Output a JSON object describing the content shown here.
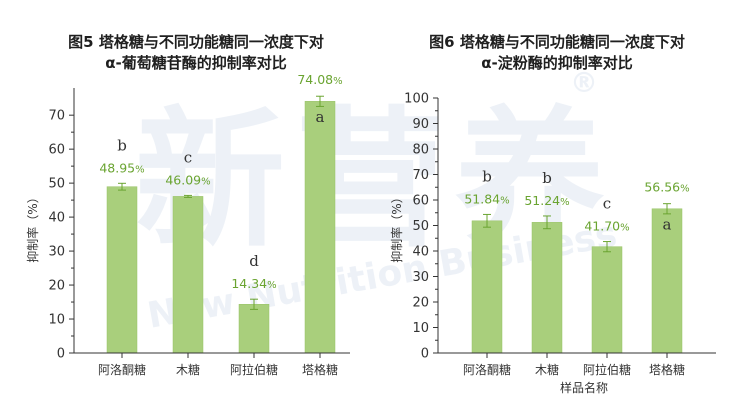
{
  "watermark": {
    "chinese": "新营养",
    "english": "New Nutrition Business",
    "mark": "®"
  },
  "charts": [
    {
      "id": "chart5",
      "title_lines": [
        "图5 塔格糖与不同功能糖同一浓度下对",
        "α-葡萄糖苷酶的抑制率对比"
      ],
      "ylabel": "抑制率（%）",
      "xlabel": "",
      "yticks": [
        "0",
        "10",
        "20",
        "30",
        "40",
        "50",
        "60",
        "70"
      ],
      "value_labels": [
        "48.95",
        "46.09",
        "14.34",
        "74.08"
      ],
      "value_suffix": "%",
      "significance": [
        "b",
        "c",
        "d",
        "a"
      ],
      "categories": [
        "阿洛酮糖",
        "木糖",
        "阿拉伯糖",
        "塔格糖"
      ]
    },
    {
      "id": "chart6",
      "title_lines": [
        "图6 塔格糖与不同功能糖同一浓度下对",
        "α-淀粉酶的抑制率对比"
      ],
      "ylabel": "抑制率（%）",
      "xlabel": "样品名称",
      "yticks": [
        "0",
        "10",
        "20",
        "30",
        "40",
        "50",
        "60",
        "70",
        "80",
        "90",
        "100"
      ],
      "value_labels": [
        "51.84",
        "51.24",
        "41.70",
        "56.56"
      ],
      "value_suffix": "%",
      "significance": [
        "b",
        "b",
        "c",
        "a"
      ],
      "categories": [
        "阿洛酮糖",
        "木糖",
        "阿拉伯糖",
        "塔格糖"
      ]
    }
  ],
  "shared_xlabel": "样品名称",
  "colors": {
    "bar": "#a9cf7c",
    "bar_edge": "#97c264",
    "error_bar": "#6aa431",
    "value_label": "#6aa431",
    "axis": "#333333"
  },
  "chart_data": [
    {
      "type": "bar",
      "title": "图5 塔格糖与不同功能糖同一浓度下对α-葡萄糖苷酶的抑制率对比",
      "xlabel": "",
      "ylabel": "抑制率（%）",
      "categories": [
        "阿洛酮糖",
        "木糖",
        "阿拉伯糖",
        "塔格糖"
      ],
      "values": [
        48.95,
        46.09,
        14.34,
        74.08
      ],
      "errors": [
        1.0,
        0.3,
        1.5,
        1.5
      ],
      "significance": [
        "b",
        "c",
        "d",
        "a"
      ],
      "ylim": [
        0,
        78
      ],
      "grid": false,
      "legend": "none"
    },
    {
      "type": "bar",
      "title": "图6 塔格糖与不同功能糖同一浓度下对α-淀粉酶的抑制率对比",
      "xlabel": "样品名称",
      "ylabel": "抑制率（%）",
      "categories": [
        "阿洛酮糖",
        "木糖",
        "阿拉伯糖",
        "塔格糖"
      ],
      "values": [
        51.84,
        51.24,
        41.7,
        56.56
      ],
      "errors": [
        2.5,
        2.5,
        2.0,
        2.0
      ],
      "significance": [
        "b",
        "b",
        "c",
        "a"
      ],
      "ylim": [
        0,
        100
      ],
      "grid": false,
      "legend": "none"
    }
  ]
}
